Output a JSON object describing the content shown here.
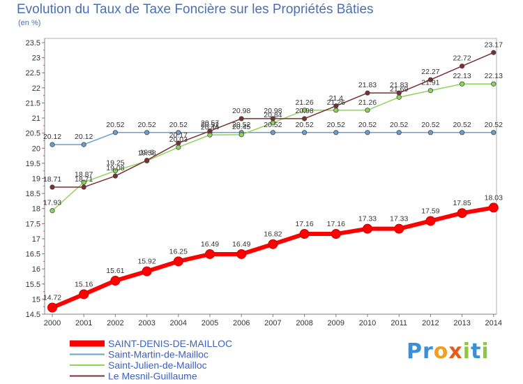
{
  "chart_data": {
    "type": "line",
    "title": "Evolution du Taux de Taxe Foncière sur les Propriétés Bâties",
    "unit_label": "(en %)",
    "x": [
      "2000",
      "2001",
      "2002",
      "2003",
      "2004",
      "2005",
      "2006",
      "2007",
      "2008",
      "2009",
      "2010",
      "2011",
      "2012",
      "2013",
      "2014"
    ],
    "ylim": [
      14.5,
      23.5
    ],
    "yticks": [
      "14.5",
      "15",
      "15.5",
      "16",
      "16.5",
      "17",
      "17.5",
      "18",
      "18.5",
      "19",
      "19.5",
      "20",
      "20.5",
      "21",
      "21.5",
      "22",
      "22.5",
      "23",
      "23.5"
    ],
    "grid": false,
    "legend_position": "bottom-left",
    "series": [
      {
        "name": "SAINT-DENIS-DE-MAILLOC",
        "color": "#ff0000",
        "values": [
          14.72,
          15.16,
          15.61,
          15.92,
          16.25,
          16.49,
          16.49,
          16.82,
          17.16,
          17.16,
          17.33,
          17.33,
          17.59,
          17.85,
          18.03
        ],
        "labels": [
          "14.72",
          "15.16",
          "15.61",
          "15.92",
          "16.25",
          "16.49",
          "16.49",
          "16.82",
          "17.16",
          "17.16",
          "17.33",
          "17.33",
          "17.59",
          "17.85",
          "18.03"
        ]
      },
      {
        "name": "Saint-Martin-de-Mailloc",
        "color": "#6a9fcf",
        "values": [
          20.12,
          20.12,
          20.52,
          20.52,
          20.52,
          20.52,
          20.52,
          20.52,
          20.52,
          20.52,
          20.52,
          20.52,
          20.52,
          20.52,
          20.52
        ],
        "labels": [
          "20.12",
          "20.12",
          "20.52",
          "20.52",
          "20.52",
          "20.52",
          "20.52",
          "20.52",
          "20.52",
          "20.52",
          "20.52",
          "20.52",
          "20.52",
          "20.52",
          "20.52"
        ]
      },
      {
        "name": "Saint-Julien-de-Mailloc",
        "color": "#8fd45a",
        "values": [
          17.93,
          18.87,
          19.25,
          19.58,
          20.03,
          20.44,
          20.45,
          20.84,
          21.26,
          21.26,
          21.26,
          21.69,
          21.91,
          22.13,
          22.13
        ],
        "labels": [
          "17.93",
          "18.87",
          "19.25",
          "19.58",
          "20.03",
          "20.44",
          "20.45",
          "20.84",
          "21.26",
          "21.26",
          "21.26",
          "21.69",
          "21.91",
          "22.13",
          "22.13"
        ]
      },
      {
        "name": "Le Mesnil-Guillaume",
        "color": "#7a3030",
        "values": [
          18.71,
          18.71,
          19.08,
          19.6,
          20.17,
          20.57,
          20.98,
          20.98,
          20.98,
          21.4,
          21.83,
          21.83,
          22.27,
          22.72,
          23.17
        ],
        "labels": [
          "18.71",
          "18.71",
          "19.08",
          "19.6",
          "20.17",
          "20.57",
          "20.98",
          "20.98",
          "20.98",
          "21.4",
          "21.83",
          "21.83",
          "22.27",
          "22.72",
          "23.17"
        ]
      }
    ]
  },
  "brand": {
    "letters": [
      "P",
      "r",
      "o",
      "x",
      "i",
      "t",
      "i"
    ],
    "colors": [
      "#3a8fd6",
      "#3a8fd6",
      "#f0a020",
      "#e85a1a",
      "#8ec641",
      "#3a8fd6",
      "#8ec641"
    ]
  }
}
